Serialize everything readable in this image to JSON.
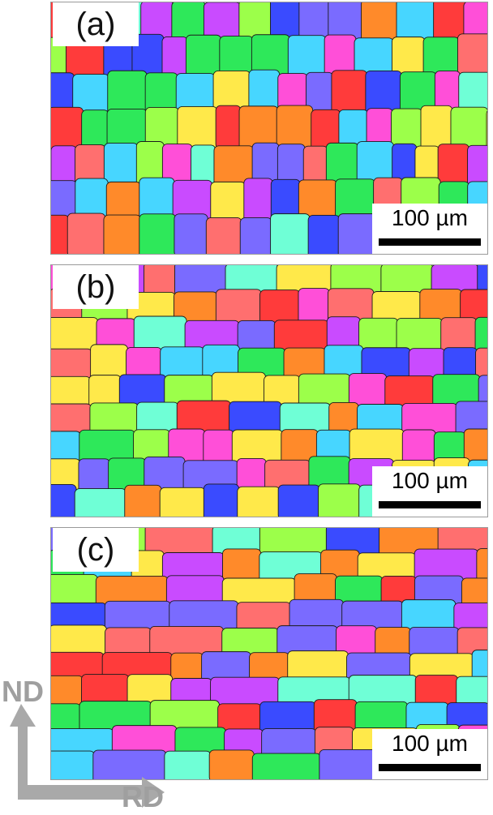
{
  "panels": [
    {
      "label": "(a)",
      "scale_label": "100 µm"
    },
    {
      "label": "(b)",
      "scale_label": "100 µm"
    },
    {
      "label": "(c)",
      "scale_label": "100 µm"
    }
  ],
  "axes": {
    "vertical_label": "ND",
    "horizontal_label": "RD",
    "color": "#9f9f9f"
  },
  "palette": [
    "#3a4bff",
    "#2ee85a",
    "#ff3b3b",
    "#ff8a2a",
    "#ffe94a",
    "#c94bff",
    "#ff4fd8",
    "#47d6ff",
    "#9cff4a",
    "#7a6bff",
    "#ff6f6f",
    "#6fffd6"
  ]
}
